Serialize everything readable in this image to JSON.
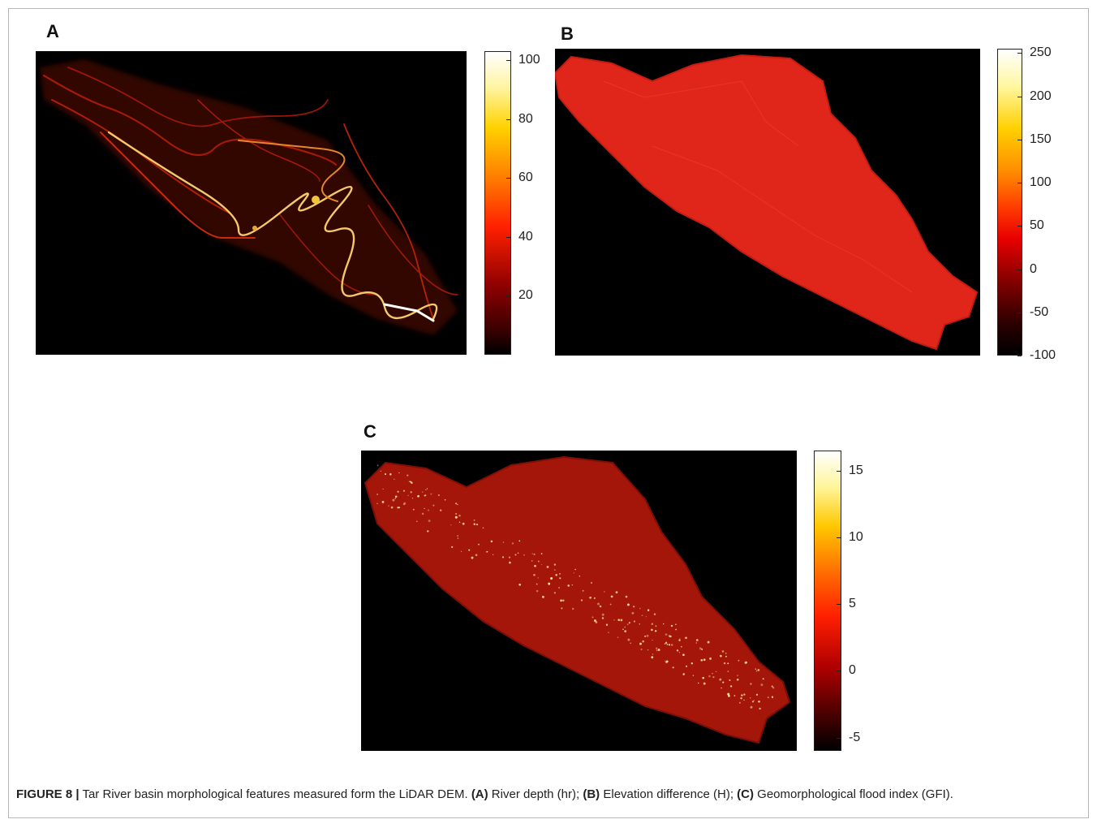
{
  "panels": [
    {
      "label": "A",
      "colorbar_ticks": [
        "100",
        "80",
        "60",
        "40",
        "20"
      ],
      "colorbar_min": 0,
      "colorbar_max": 103,
      "tick_values": [
        100,
        80,
        60,
        40,
        20
      ],
      "colormap": "hot"
    },
    {
      "label": "B",
      "colorbar_ticks": [
        "250",
        "200",
        "150",
        "100",
        "50",
        "0",
        "-50",
        "-100"
      ],
      "colorbar_min": -100,
      "colorbar_max": 255,
      "tick_values": [
        250,
        200,
        150,
        100,
        50,
        0,
        -50,
        -100
      ],
      "colormap": "hot"
    },
    {
      "label": "C",
      "colorbar_ticks": [
        "15",
        "10",
        "5",
        "0",
        "-5"
      ],
      "colorbar_min": -6,
      "colorbar_max": 16.5,
      "tick_values": [
        15,
        10,
        5,
        0,
        -5
      ],
      "colormap": "hot"
    }
  ],
  "caption": {
    "fig_label": "FIGURE 8 |",
    "text1": " Tar River basin morphological features measured form the LiDAR DEM. ",
    "a_label": "(A)",
    "a_text": " River depth (hr); ",
    "b_label": "(B)",
    "b_text": " Elevation difference (H); ",
    "c_label": "(C)",
    "c_text": " Geomorphological flood index (GFI)."
  }
}
